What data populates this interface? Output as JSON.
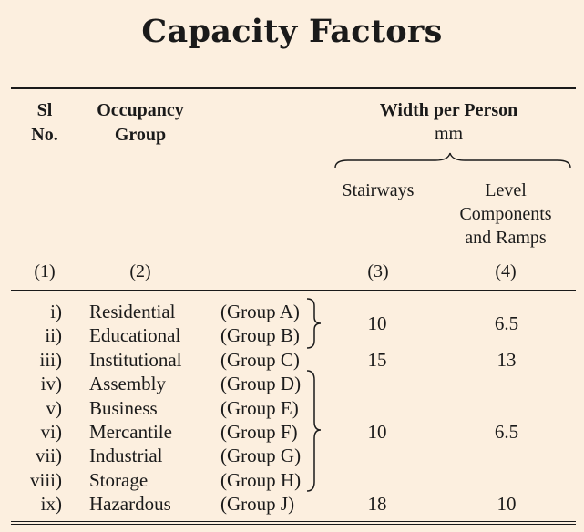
{
  "title": "Capacity Factors",
  "headers": {
    "sl_no_line1": "Sl",
    "sl_no_line2": "No.",
    "occupancy_line1": "Occupancy",
    "occupancy_line2": "Group",
    "width_per_person": "Width per Person",
    "unit": "mm",
    "stairways": "Stairways",
    "level_line1": "Level",
    "level_line2": "Components",
    "level_line3": "and Ramps"
  },
  "column_numbers": [
    "(1)",
    "(2)",
    "(3)",
    "(4)"
  ],
  "rows": [
    {
      "sl": "i)",
      "occupancy": "Residential",
      "group": "(Group A)"
    },
    {
      "sl": "ii)",
      "occupancy": "Educational",
      "group": "(Group B)"
    },
    {
      "sl": "iii)",
      "occupancy": "Institutional",
      "group": "(Group C)"
    },
    {
      "sl": "iv)",
      "occupancy": "Assembly",
      "group": "(Group D)"
    },
    {
      "sl": "v)",
      "occupancy": "Business",
      "group": "(Group E)"
    },
    {
      "sl": "vi)",
      "occupancy": "Mercantile",
      "group": "(Group F)"
    },
    {
      "sl": "vii)",
      "occupancy": "Industrial",
      "group": "(Group G)"
    },
    {
      "sl": "viii)",
      "occupancy": "Storage",
      "group": "(Group H)"
    },
    {
      "sl": "ix)",
      "occupancy": "Hazardous",
      "group": "(Group J)"
    }
  ],
  "values": [
    {
      "stairways": "10",
      "level": "6.5"
    },
    {
      "stairways": "15",
      "level": "13"
    },
    {
      "stairways": "10",
      "level": "6.5"
    },
    {
      "stairways": "18",
      "level": "10"
    }
  ]
}
